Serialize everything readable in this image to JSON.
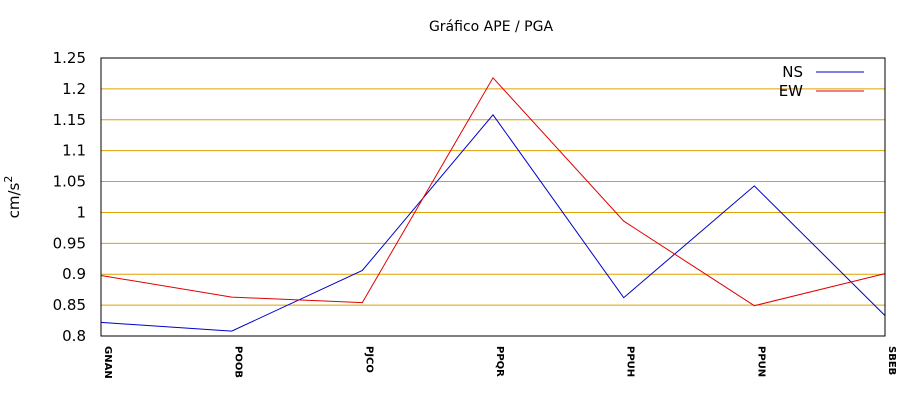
{
  "chart_data": {
    "type": "line",
    "title": "Gráfico  APE / PGA",
    "ylabel": "cm/s",
    "ylabel_sup": "2",
    "xlabel": "",
    "categories": [
      "GNAN",
      "POOB",
      "PJCO",
      "PPQR",
      "PPUH",
      "PPUN",
      "SBEB"
    ],
    "ylim": [
      0.8,
      1.25
    ],
    "yticks": [
      0.8,
      0.85,
      0.9,
      0.95,
      1,
      1.05,
      1.1,
      1.15,
      1.2,
      1.25
    ],
    "ytick_labels": [
      "0.8",
      "0.85",
      "0.9",
      "0.95",
      "1",
      "1.05",
      "1.1",
      "1.15",
      "1.2",
      "1.25"
    ],
    "grid": true,
    "grid_color": "#e0a000",
    "legend_position": "top-right",
    "series": [
      {
        "name": "NS",
        "color": "#0000c8",
        "values": [
          0.822,
          0.808,
          0.906,
          1.158,
          0.862,
          1.043,
          0.833
        ]
      },
      {
        "name": "EW",
        "color": "#e00000",
        "values": [
          0.898,
          0.863,
          0.854,
          1.218,
          0.986,
          0.849,
          0.901
        ]
      }
    ]
  }
}
